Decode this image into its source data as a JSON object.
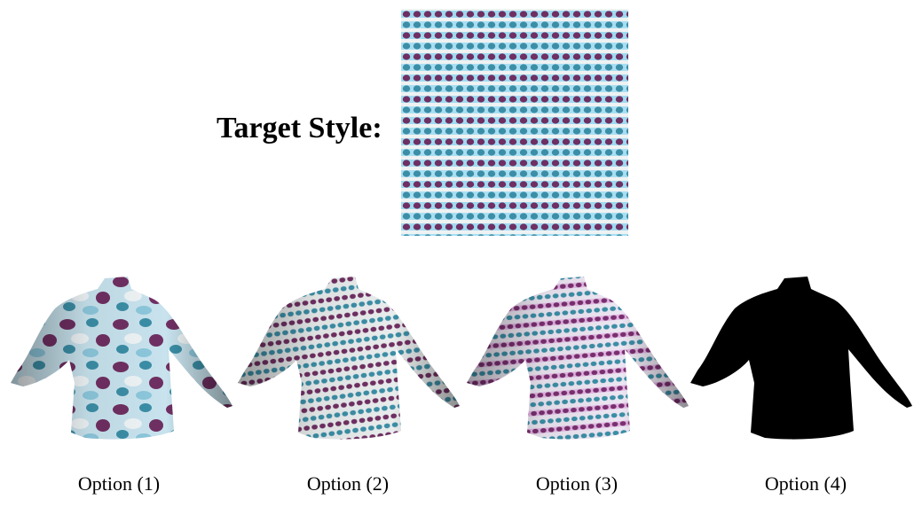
{
  "target": {
    "label": "Target Style:"
  },
  "options": [
    {
      "label": "Option (1)",
      "texture": "blotchy-pattern"
    },
    {
      "label": "Option (2)",
      "texture": "dot-stripes"
    },
    {
      "label": "Option (3)",
      "texture": "pink-dot-stripes"
    },
    {
      "label": "Option (4)",
      "texture": "solid-black"
    }
  ],
  "colors": {
    "purple": "#6f2f62",
    "teal": "#3b8ea6",
    "light_blue": "#9fdaf0",
    "cream": "#f2f0ea",
    "pink": "#d88ccf",
    "black": "#000000"
  }
}
